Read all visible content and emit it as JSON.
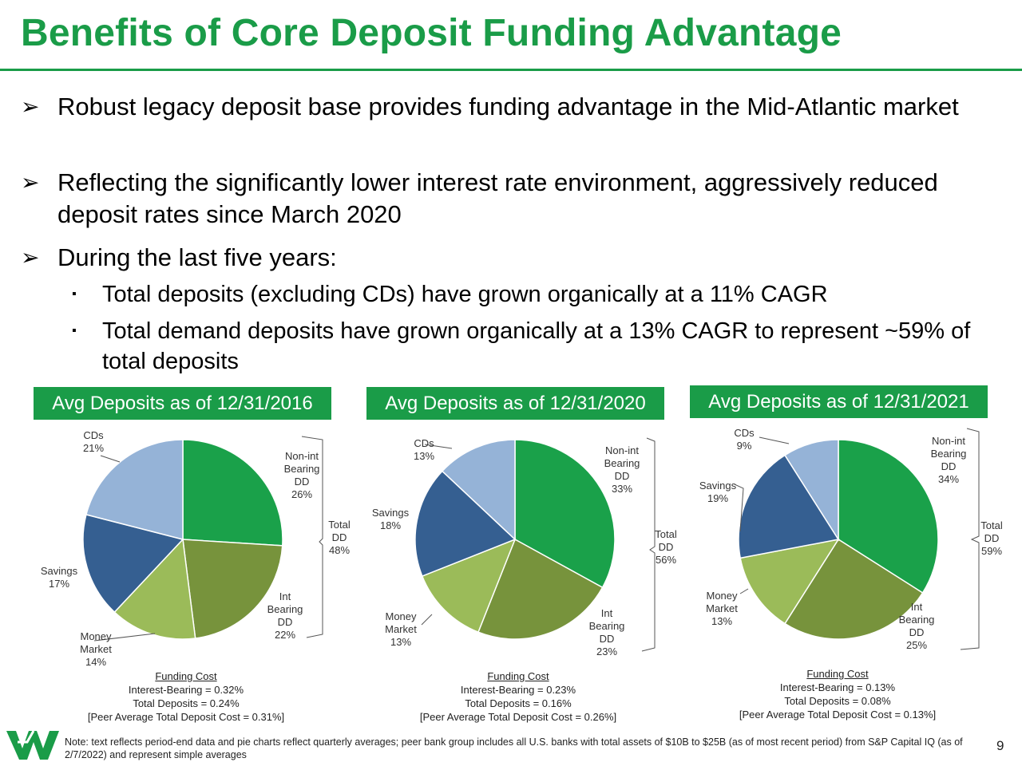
{
  "title": "Benefits of Core Deposit Funding Advantage",
  "bullets": [
    "Robust legacy deposit base provides funding advantage in the Mid-Atlantic market",
    "Reflecting the significantly lower interest rate environment, aggressively reduced deposit rates since March 2020",
    "During the last five years:"
  ],
  "sub_bullets": [
    "Total deposits (excluding CDs) have grown organically at a 11% CAGR",
    "Total demand deposits have grown organically at a 13% CAGR to represent ~59% of total deposits"
  ],
  "bullet_marker": "➢",
  "sub_marker": "▪",
  "colors": {
    "brand_green": "#1a9c48",
    "non_int_bearing_dd": "#1aa14a",
    "int_bearing_dd": "#77933c",
    "money_market": "#9bbb59",
    "savings": "#355f91",
    "cds": "#95b3d7"
  },
  "chart_data": [
    {
      "type": "pie",
      "title": "Avg Deposits as of 12/31/2016",
      "slices": [
        {
          "label": "Non-int Bearing DD",
          "value": 26,
          "display": "Non-int\nBearing\nDD\n26%"
        },
        {
          "label": "Int Bearing DD",
          "value": 22,
          "display": "Int\nBearing\nDD\n22%"
        },
        {
          "label": "Money Market",
          "value": 14,
          "display": "Money\nMarket\n14%"
        },
        {
          "label": "Savings",
          "value": 17,
          "display": "Savings\n17%"
        },
        {
          "label": "CDs",
          "value": 21,
          "display": "CDs\n21%"
        }
      ],
      "total_dd": "Total\nDD\n48%",
      "funding_cost": {
        "heading": "Funding Cost",
        "interest_bearing": "Interest-Bearing = 0.32%",
        "total_deposits": "Total Deposits = 0.24%",
        "peer": "[Peer Average Total Deposit Cost = 0.31%]"
      }
    },
    {
      "type": "pie",
      "title": "Avg Deposits as of 12/31/2020",
      "slices": [
        {
          "label": "Non-int Bearing DD",
          "value": 33,
          "display": "Non-int\nBearing\nDD\n33%"
        },
        {
          "label": "Int Bearing DD",
          "value": 23,
          "display": "Int\nBearing\nDD\n23%"
        },
        {
          "label": "Money Market",
          "value": 13,
          "display": "Money\nMarket\n13%"
        },
        {
          "label": "Savings",
          "value": 18,
          "display": "Savings\n18%"
        },
        {
          "label": "CDs",
          "value": 13,
          "display": "CDs\n13%"
        }
      ],
      "total_dd": "Total\nDD\n56%",
      "funding_cost": {
        "heading": "Funding Cost",
        "interest_bearing": "Interest-Bearing = 0.23%",
        "total_deposits": "Total Deposits = 0.16%",
        "peer": "[Peer Average Total Deposit Cost = 0.26%]"
      }
    },
    {
      "type": "pie",
      "title": "Avg Deposits as of 12/31/2021",
      "slices": [
        {
          "label": "Non-int Bearing DD",
          "value": 34,
          "display": "Non-int\nBearing\nDD\n34%"
        },
        {
          "label": "Int Bearing DD",
          "value": 25,
          "display": "Int\nBearing\nDD\n25%"
        },
        {
          "label": "Money Market",
          "value": 13,
          "display": "Money\nMarket\n13%"
        },
        {
          "label": "Savings",
          "value": 19,
          "display": "Savings\n19%"
        },
        {
          "label": "CDs",
          "value": 9,
          "display": "CDs\n9%"
        }
      ],
      "total_dd": "Total\nDD\n59%",
      "funding_cost": {
        "heading": "Funding Cost",
        "interest_bearing": "Interest-Bearing = 0.13%",
        "total_deposits": "Total Deposits = 0.08%",
        "peer": "[Peer Average Total Deposit Cost = 0.13%]"
      }
    }
  ],
  "note": "Note: text reflects period-end data and pie charts reflect quarterly averages; peer bank group includes all U.S. banks with total assets of $10B to $25B (as of most recent period) from S&P Capital IQ (as of 2/7/2022) and represent simple averages",
  "page_number": "9"
}
